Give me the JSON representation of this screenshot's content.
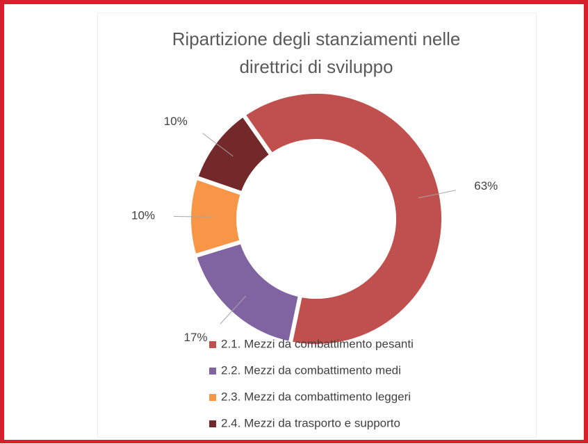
{
  "chart_data": {
    "type": "donut",
    "title": "Ripartizione degli stanziamenti nelle direttrici di sviluppo",
    "categories": [
      "2.1. Mezzi da combattimento pesanti",
      "2.2. Mezzi da combattimento medi",
      "2.3. Mezzi da combattimento leggeri",
      "2.4. Mezzi da trasporto e supporto"
    ],
    "values": [
      63,
      17,
      10,
      10
    ],
    "value_labels": [
      "63%",
      "17%",
      "10%",
      "10%"
    ],
    "colors": [
      "#c0504d",
      "#8064a2",
      "#f79646",
      "#73282a"
    ],
    "legend": "bottom"
  }
}
